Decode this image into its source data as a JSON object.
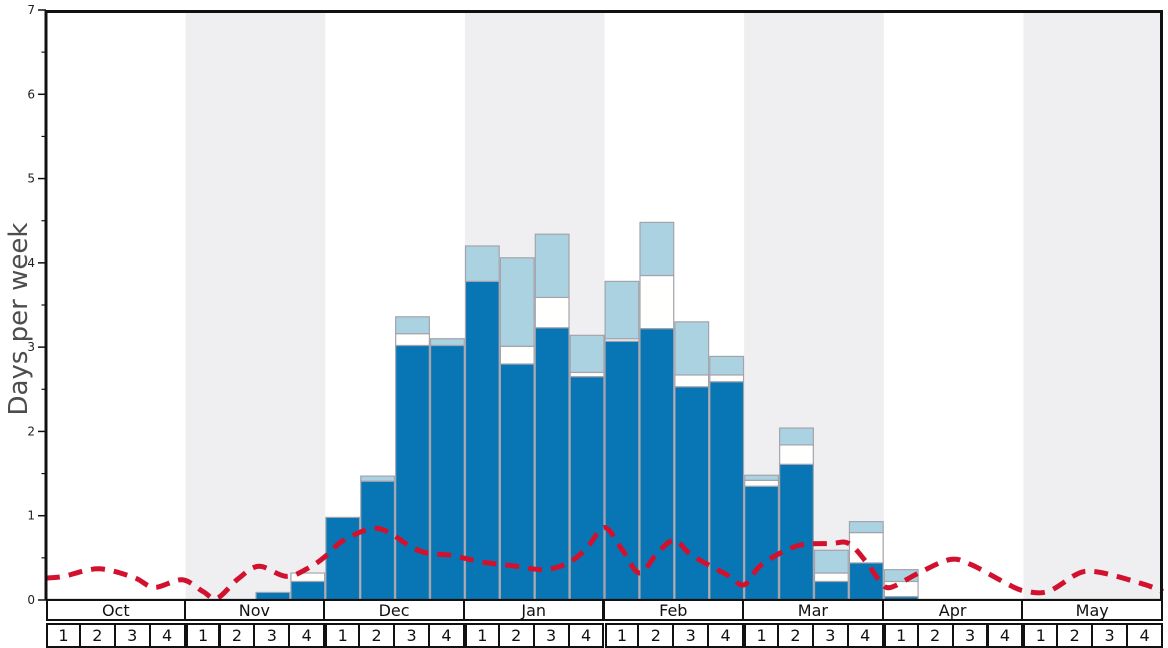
{
  "chart": {
    "y_axis_label": "Days per week",
    "y_ticks": [
      "0",
      "1",
      "2",
      "3",
      "4",
      "5",
      "6",
      "7"
    ],
    "months": [
      {
        "label": "Oct",
        "weeks": [
          "1",
          "2",
          "3",
          "4"
        ],
        "shaded": false
      },
      {
        "label": "Nov",
        "weeks": [
          "1",
          "2",
          "3",
          "4"
        ],
        "shaded": true
      },
      {
        "label": "Dec",
        "weeks": [
          "1",
          "2",
          "3",
          "4"
        ],
        "shaded": false
      },
      {
        "label": "Jan",
        "weeks": [
          "1",
          "2",
          "3",
          "4"
        ],
        "shaded": true
      },
      {
        "label": "Feb",
        "weeks": [
          "1",
          "2",
          "3",
          "4"
        ],
        "shaded": false
      },
      {
        "label": "Mar",
        "weeks": [
          "1",
          "2",
          "3",
          "4"
        ],
        "shaded": true
      },
      {
        "label": "Apr",
        "weeks": [
          "1",
          "2",
          "3",
          "4"
        ],
        "shaded": false
      },
      {
        "label": "May",
        "weeks": [
          "1",
          "2",
          "3",
          "4"
        ],
        "shaded": true
      }
    ],
    "colors": {
      "dark_blue": "#0876b4",
      "white_segment": "#fffffe",
      "light_blue": "#abd2e0",
      "bar_border": "#a3a3ad",
      "band_gray": "#efeff1",
      "red_line": "#d2112e",
      "axis": "#111111",
      "tick_text": "#222222",
      "y_label_gray": "#4d4d4d"
    }
  },
  "chart_data": {
    "type": "bar",
    "stacked": true,
    "ylabel": "Days per week",
    "ylim": [
      0,
      7
    ],
    "x_units": "weeks (4 per month), Oct through May",
    "categories": [
      "Oct1",
      "Oct2",
      "Oct3",
      "Oct4",
      "Nov1",
      "Nov2",
      "Nov3",
      "Nov4",
      "Dec1",
      "Dec2",
      "Dec3",
      "Dec4",
      "Jan1",
      "Jan2",
      "Jan3",
      "Jan4",
      "Feb1",
      "Feb2",
      "Feb3",
      "Feb4",
      "Mar1",
      "Mar2",
      "Mar3",
      "Mar4",
      "Apr1",
      "Apr2",
      "Apr3",
      "Apr4",
      "May1",
      "May2",
      "May3",
      "May4"
    ],
    "series": [
      {
        "name": "dark_blue_bottom",
        "color": "#0876b4",
        "values": [
          0,
          0,
          0,
          0,
          0,
          0,
          0.09,
          0.22,
          0.98,
          1.41,
          3.02,
          3.02,
          3.78,
          2.8,
          3.23,
          2.65,
          3.07,
          3.22,
          2.53,
          2.59,
          1.35,
          1.61,
          0.22,
          0.44,
          0.04,
          0,
          0,
          0,
          0,
          0,
          0,
          0
        ]
      },
      {
        "name": "white_middle",
        "color": "#fffffe",
        "values": [
          0,
          0,
          0,
          0,
          0,
          0,
          0,
          0.1,
          0,
          0,
          0.14,
          0,
          0,
          0.21,
          0.36,
          0.05,
          0.03,
          0.63,
          0.14,
          0.08,
          0.07,
          0.23,
          0.1,
          0.36,
          0.18,
          0,
          0,
          0,
          0,
          0,
          0,
          0
        ]
      },
      {
        "name": "light_blue_top",
        "color": "#abd2e0",
        "values": [
          0,
          0,
          0,
          0,
          0,
          0,
          0,
          0,
          0,
          0.06,
          0.2,
          0.08,
          0.42,
          1.05,
          0.75,
          0.44,
          0.68,
          0.63,
          0.63,
          0.22,
          0.06,
          0.2,
          0.27,
          0.13,
          0.14,
          0,
          0,
          0,
          0,
          0,
          0,
          0
        ]
      }
    ],
    "line": {
      "name": "red_dashed_line",
      "style": "dashed",
      "color": "#d2112e",
      "x_units": "weeks_from_Oct1_left_edge (0-32)",
      "points": [
        [
          0,
          0.26
        ],
        [
          0.5,
          0.28
        ],
        [
          1.5,
          0.37
        ],
        [
          2.5,
          0.27
        ],
        [
          3.1,
          0.15
        ],
        [
          3.9,
          0.24
        ],
        [
          4.5,
          0.1
        ],
        [
          4.9,
          0.02
        ],
        [
          5.5,
          0.25
        ],
        [
          6.1,
          0.4
        ],
        [
          6.9,
          0.28
        ],
        [
          7.6,
          0.4
        ],
        [
          8.1,
          0.55
        ],
        [
          8.5,
          0.7
        ],
        [
          9.5,
          0.85
        ],
        [
          10.5,
          0.62
        ],
        [
          11.0,
          0.55
        ],
        [
          11.6,
          0.53
        ],
        [
          12.5,
          0.45
        ],
        [
          13.5,
          0.4
        ],
        [
          14.3,
          0.36
        ],
        [
          15.0,
          0.45
        ],
        [
          15.5,
          0.62
        ],
        [
          16.0,
          0.86
        ],
        [
          16.5,
          0.6
        ],
        [
          17.0,
          0.32
        ],
        [
          17.5,
          0.55
        ],
        [
          18.0,
          0.71
        ],
        [
          18.5,
          0.53
        ],
        [
          19.5,
          0.3
        ],
        [
          20.0,
          0.18
        ],
        [
          20.5,
          0.42
        ],
        [
          21.5,
          0.64
        ],
        [
          22.5,
          0.67
        ],
        [
          23.0,
          0.67
        ],
        [
          23.5,
          0.45
        ],
        [
          23.9,
          0.22
        ],
        [
          24.2,
          0.15
        ],
        [
          25.0,
          0.32
        ],
        [
          25.9,
          0.48
        ],
        [
          26.5,
          0.42
        ],
        [
          27.5,
          0.2
        ],
        [
          28.0,
          0.11
        ],
        [
          28.7,
          0.1
        ],
        [
          29.5,
          0.3
        ],
        [
          29.9,
          0.34
        ],
        [
          30.5,
          0.3
        ],
        [
          31.5,
          0.18
        ],
        [
          32,
          0.1
        ]
      ]
    },
    "background_shaded_months": [
      "Nov",
      "Jan",
      "Mar",
      "May"
    ],
    "grid": false,
    "legend": "none"
  }
}
